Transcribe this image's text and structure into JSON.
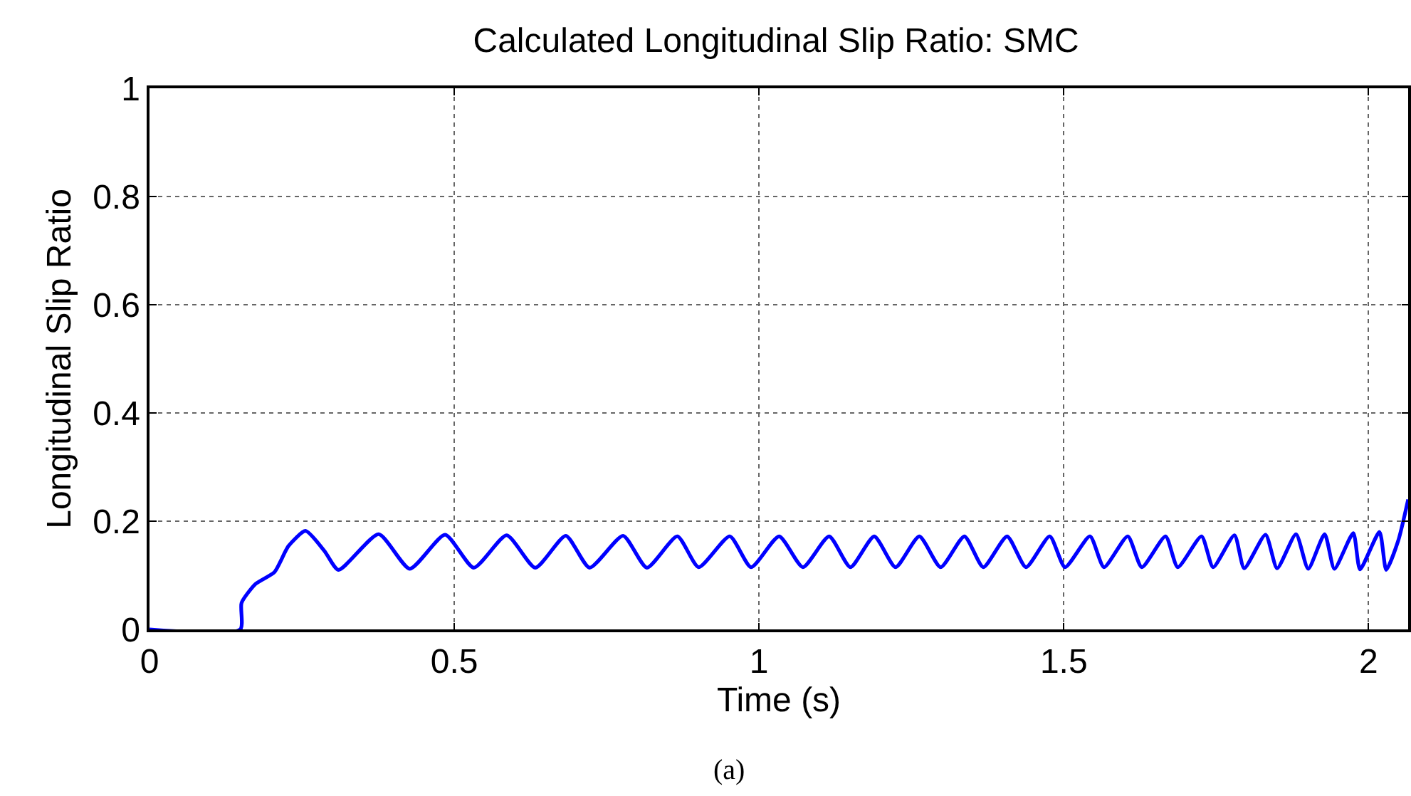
{
  "chart_data": {
    "type": "line",
    "title": "Calculated Longitudinal Slip Ratio: SMC",
    "xlabel": "Time (s)",
    "ylabel": "Longitudinal Slip Ratio",
    "annotations": [
      "(a)"
    ],
    "xlim": [
      0,
      2.065
    ],
    "ylim": [
      0,
      1
    ],
    "xticks": [
      0,
      0.5,
      1,
      1.5,
      2
    ],
    "yticks": [
      0,
      0.2,
      0.4,
      0.6,
      0.8,
      1
    ],
    "grid": true,
    "marker": "none",
    "line_style": "solid",
    "series": [
      {
        "color": "#0000ff",
        "x": [
          0,
          0.149,
          0.151,
          0.174,
          0.205,
          0.228,
          0.256,
          0.287,
          0.31,
          0.376,
          0.427,
          0.485,
          0.532,
          0.586,
          0.633,
          0.683,
          0.722,
          0.777,
          0.816,
          0.866,
          0.901,
          0.952,
          0.987,
          1.033,
          1.072,
          1.115,
          1.15,
          1.189,
          1.224,
          1.263,
          1.298,
          1.337,
          1.368,
          1.407,
          1.438,
          1.477,
          1.502,
          1.543,
          1.566,
          1.605,
          1.628,
          1.667,
          1.687,
          1.726,
          1.745,
          1.78,
          1.796,
          1.831,
          1.85,
          1.881,
          1.901,
          1.928,
          1.944,
          1.975,
          1.986,
          2.018,
          2.029,
          2.049,
          2.065
        ],
        "values": [
          0,
          0,
          0.049,
          0.084,
          0.106,
          0.154,
          0.182,
          0.145,
          0.11,
          0.176,
          0.112,
          0.175,
          0.114,
          0.174,
          0.114,
          0.173,
          0.114,
          0.173,
          0.114,
          0.172,
          0.115,
          0.172,
          0.115,
          0.172,
          0.115,
          0.172,
          0.115,
          0.172,
          0.115,
          0.172,
          0.115,
          0.172,
          0.115,
          0.172,
          0.115,
          0.172,
          0.115,
          0.172,
          0.115,
          0.172,
          0.115,
          0.172,
          0.115,
          0.172,
          0.115,
          0.174,
          0.113,
          0.175,
          0.113,
          0.176,
          0.112,
          0.176,
          0.112,
          0.178,
          0.111,
          0.18,
          0.11,
          0.165,
          0.24
        ]
      }
    ]
  }
}
